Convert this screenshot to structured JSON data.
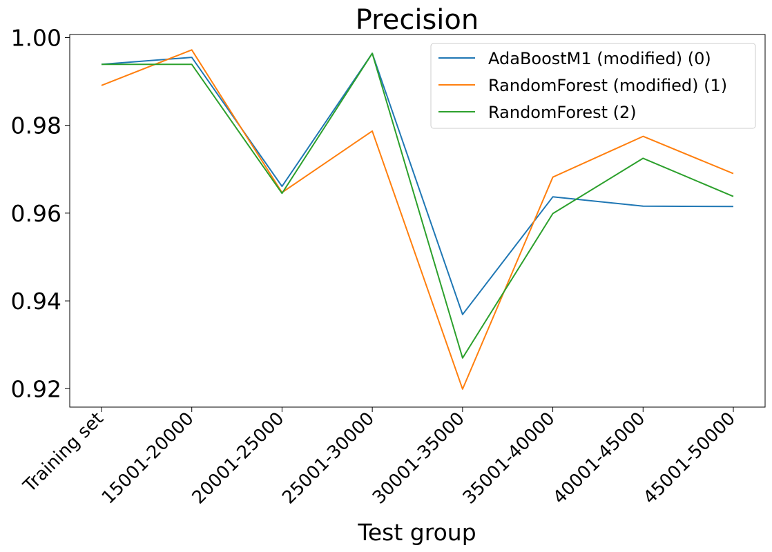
{
  "chart_data": {
    "type": "line",
    "title": "Precision",
    "xlabel": "Test group",
    "ylabel": "",
    "categories": [
      "Training set",
      "15001-20000",
      "20001-25000",
      "25001-30000",
      "30001-35000",
      "35001-40000",
      "40001-45000",
      "45001-50000"
    ],
    "ylim": [
      0.9158,
      1.0007
    ],
    "yticks": [
      0.92,
      0.94,
      0.96,
      0.98,
      1.0
    ],
    "ytick_labels": [
      "0.92",
      "0.94",
      "0.96",
      "0.98",
      "1.00"
    ],
    "legend_position": "top-right",
    "grid": false,
    "series": [
      {
        "name": "AdaBoostM1 (modified) (0)",
        "color": "#1f77b4",
        "values": [
          0.9939,
          0.9955,
          0.9661,
          0.9964,
          0.9369,
          0.9637,
          0.9616,
          0.9615
        ]
      },
      {
        "name": "RandomForest (modified) (1)",
        "color": "#ff7f0e",
        "values": [
          0.9891,
          0.9972,
          0.9647,
          0.9787,
          0.9199,
          0.9682,
          0.9775,
          0.969
        ]
      },
      {
        "name": "RandomForest (2)",
        "color": "#2ca02c",
        "values": [
          0.9939,
          0.9939,
          0.9645,
          0.9964,
          0.927,
          0.9599,
          0.9725,
          0.9638
        ]
      }
    ]
  }
}
